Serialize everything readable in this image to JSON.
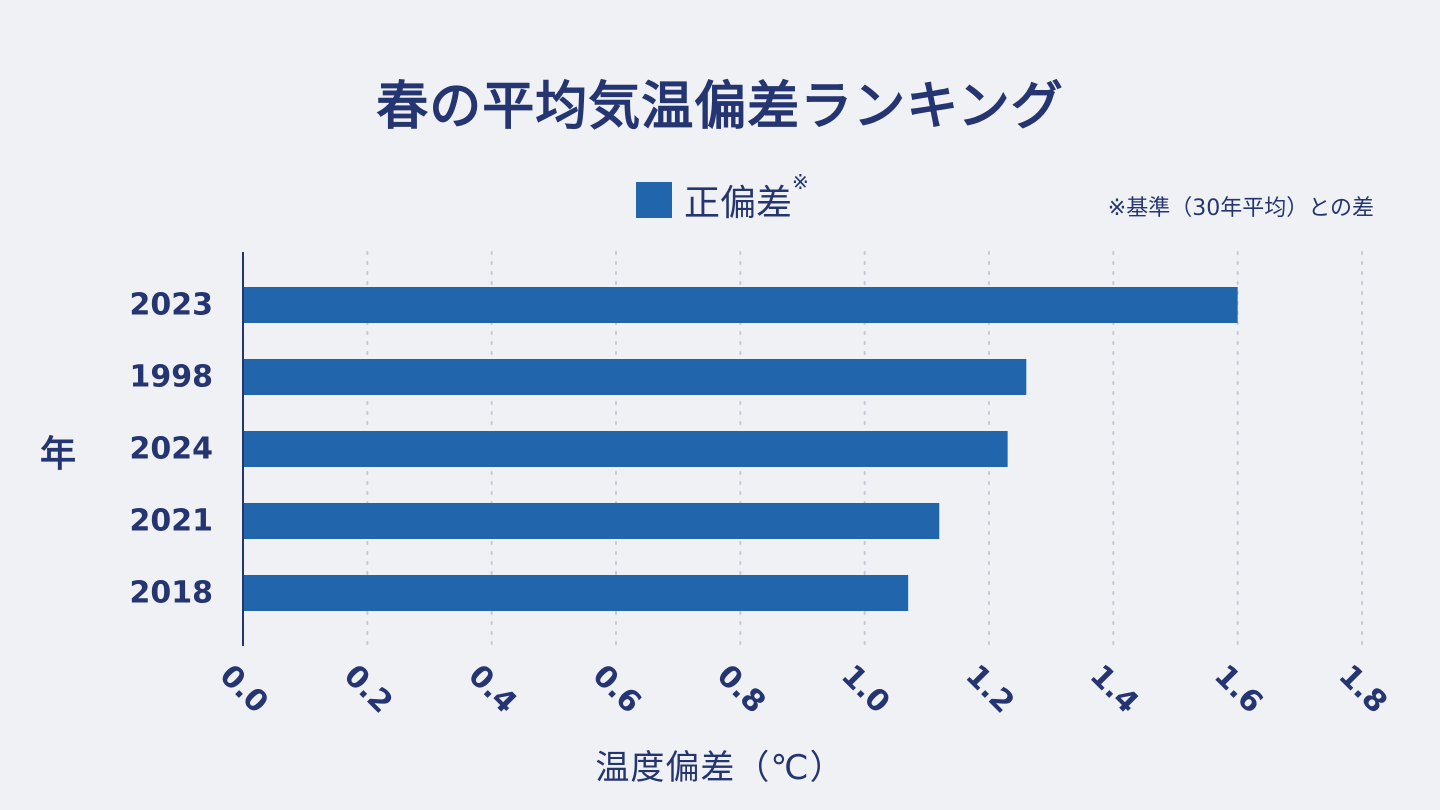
{
  "title": "春の平均気温偏差ランキング",
  "legend": {
    "label": "正偏差",
    "mark": "※"
  },
  "note": "※基準（30年平均）との差",
  "colors": {
    "bar": "#2166ad",
    "text": "#243571",
    "grid": "#c5c9d3",
    "background": "#eff1f4"
  },
  "chart_data": {
    "type": "bar",
    "orientation": "horizontal",
    "categories": [
      "2023",
      "1998",
      "2024",
      "2021",
      "2018"
    ],
    "values": [
      1.6,
      1.26,
      1.23,
      1.12,
      1.07
    ],
    "xlabel": "温度偏差（℃）",
    "ylabel": "年",
    "xlim": [
      0.0,
      1.8
    ],
    "xticks": [
      "0.0",
      "0.2",
      "0.4",
      "0.6",
      "0.8",
      "1.0",
      "1.2",
      "1.4",
      "1.6",
      "1.8"
    ],
    "grid": "vertical-dotted",
    "legend_placement": "top-center"
  }
}
